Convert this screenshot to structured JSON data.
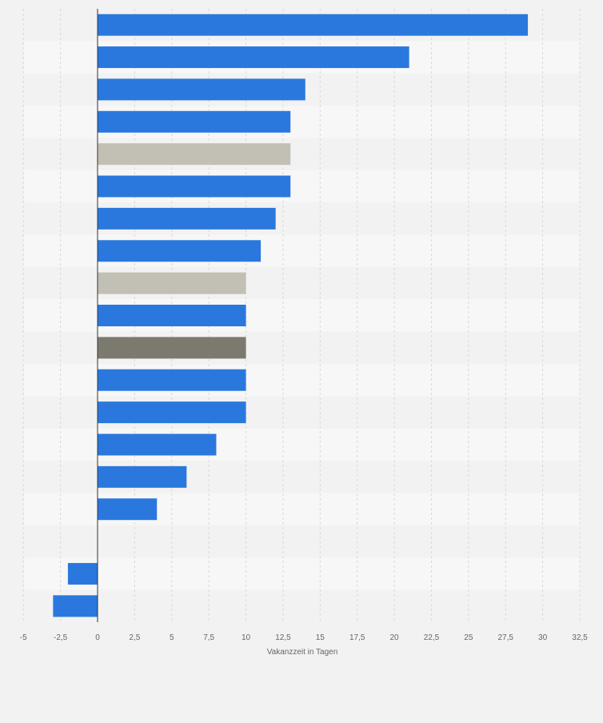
{
  "chart_data": {
    "type": "bar",
    "orientation": "horizontal",
    "xlabel": "Vakanzzeit in Tagen",
    "xlim": [
      -5,
      32.5
    ],
    "xticks": [
      -5,
      -2.5,
      0,
      2.5,
      5,
      7.5,
      10,
      12.5,
      15,
      17.5,
      20,
      22.5,
      25,
      27.5,
      30,
      32.5
    ],
    "xtick_labels": [
      "-5",
      "-2,5",
      "0",
      "2,5",
      "5",
      "7,5",
      "10",
      "12,5",
      "15",
      "17,5",
      "20",
      "22,5",
      "25",
      "27,5",
      "30",
      "32,5"
    ],
    "grid": "vertical dashed",
    "values": [
      29,
      21,
      14,
      13,
      13,
      13,
      12,
      11,
      10,
      10,
      10,
      10,
      10,
      8,
      6,
      4,
      0,
      -2,
      -3
    ],
    "bar_colors": [
      "#2a78de",
      "#2a78de",
      "#2a78de",
      "#2a78de",
      "#c2bfb5",
      "#2a78de",
      "#2a78de",
      "#2a78de",
      "#c2bfb5",
      "#2a78de",
      "#7c7a6f",
      "#2a78de",
      "#2a78de",
      "#2a78de",
      "#2a78de",
      "#2a78de",
      "#2a78de",
      "#2a78de",
      "#2a78de"
    ]
  },
  "colors": {
    "background": "#f2f2f2",
    "band_light": "#f7f7f7",
    "band_dark": "#f2f2f2",
    "grid": "#d9d9d9",
    "axis": "#333333",
    "tick_text": "#666666"
  }
}
